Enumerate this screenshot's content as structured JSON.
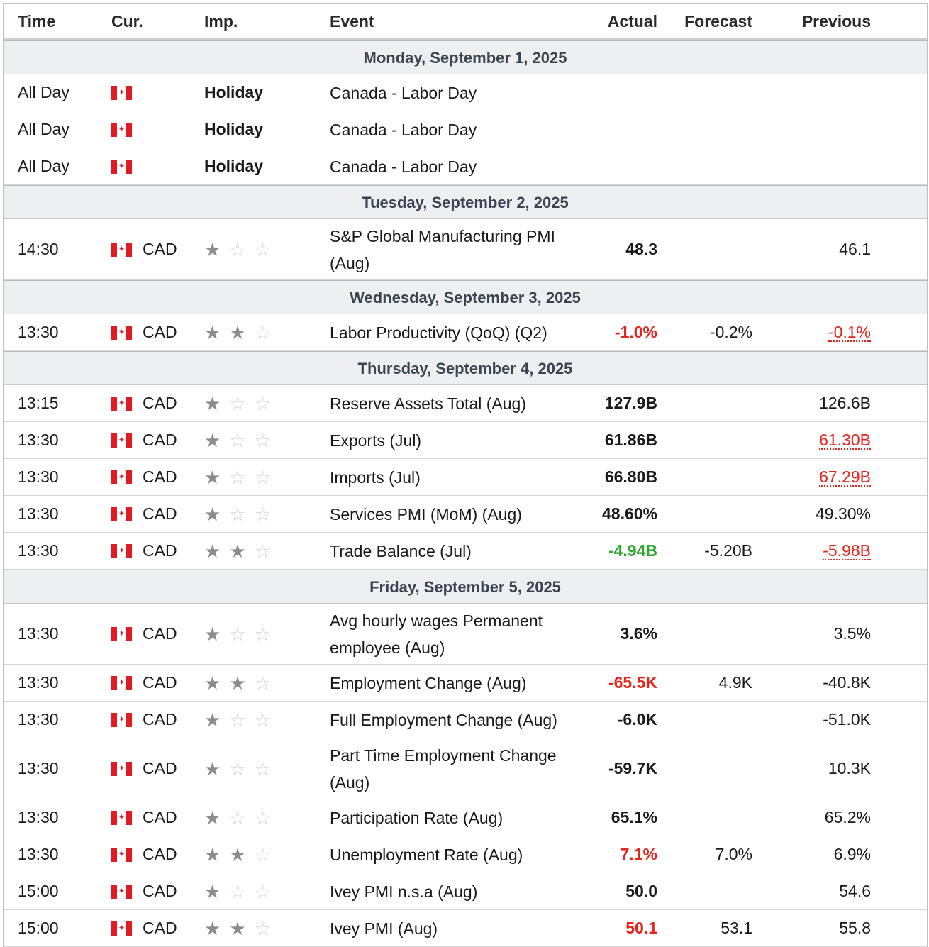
{
  "header": {
    "time": "Time",
    "cur": "Cur.",
    "imp": "Imp.",
    "event": "Event",
    "actual": "Actual",
    "forecast": "Forecast",
    "previous": "Previous"
  },
  "colors": {
    "accent_red": "#e8231b",
    "accent_green": "#2ea52e",
    "date_band": "#eeeff1"
  },
  "icons": {
    "flag": "canada-flag-icon",
    "star_filled": "star-filled-icon",
    "star_empty": "star-empty-icon"
  },
  "days": [
    {
      "date": "Monday, September 1, 2025",
      "rows": [
        {
          "time": "All Day",
          "cur": "",
          "imp_text": "Holiday",
          "stars": 0,
          "event": "Canada - Labor Day",
          "actual": "",
          "forecast": "",
          "previous": ""
        },
        {
          "time": "All Day",
          "cur": "",
          "imp_text": "Holiday",
          "stars": 0,
          "event": "Canada - Labor Day",
          "actual": "",
          "forecast": "",
          "previous": ""
        },
        {
          "time": "All Day",
          "cur": "",
          "imp_text": "Holiday",
          "stars": 0,
          "event": "Canada - Labor Day",
          "actual": "",
          "forecast": "",
          "previous": ""
        }
      ]
    },
    {
      "date": "Tuesday, September 2, 2025",
      "rows": [
        {
          "time": "14:30",
          "cur": "CAD",
          "stars": 1,
          "event": "S&P Global Manufacturing PMI (Aug)",
          "actual": "48.3",
          "actual_color": "",
          "forecast": "",
          "previous": "46.1",
          "previous_revised": false
        }
      ]
    },
    {
      "date": "Wednesday, September 3, 2025",
      "rows": [
        {
          "time": "13:30",
          "cur": "CAD",
          "stars": 2,
          "event": "Labor Productivity (QoQ) (Q2)",
          "actual": "-1.0%",
          "actual_color": "red",
          "forecast": "-0.2%",
          "previous": "-0.1%",
          "previous_revised": true
        }
      ]
    },
    {
      "date": "Thursday, September 4, 2025",
      "rows": [
        {
          "time": "13:15",
          "cur": "CAD",
          "stars": 1,
          "event": "Reserve Assets Total (Aug)",
          "actual": "127.9B",
          "actual_color": "",
          "forecast": "",
          "previous": "126.6B",
          "previous_revised": false
        },
        {
          "time": "13:30",
          "cur": "CAD",
          "stars": 1,
          "event": "Exports (Jul)",
          "actual": "61.86B",
          "actual_color": "",
          "forecast": "",
          "previous": "61.30B",
          "previous_revised": true
        },
        {
          "time": "13:30",
          "cur": "CAD",
          "stars": 1,
          "event": "Imports (Jul)",
          "actual": "66.80B",
          "actual_color": "",
          "forecast": "",
          "previous": "67.29B",
          "previous_revised": true
        },
        {
          "time": "13:30",
          "cur": "CAD",
          "stars": 1,
          "event": "Services PMI (MoM) (Aug)",
          "actual": "48.60%",
          "actual_color": "",
          "forecast": "",
          "previous": "49.30%",
          "previous_revised": false
        },
        {
          "time": "13:30",
          "cur": "CAD",
          "stars": 2,
          "event": "Trade Balance (Jul)",
          "actual": "-4.94B",
          "actual_color": "green",
          "forecast": "-5.20B",
          "previous": "-5.98B",
          "previous_revised": true
        }
      ]
    },
    {
      "date": "Friday, September 5, 2025",
      "rows": [
        {
          "time": "13:30",
          "cur": "CAD",
          "stars": 1,
          "event": "Avg hourly wages Permanent employee (Aug)",
          "actual": "3.6%",
          "actual_color": "",
          "forecast": "",
          "previous": "3.5%",
          "previous_revised": false
        },
        {
          "time": "13:30",
          "cur": "CAD",
          "stars": 2,
          "event": "Employment Change (Aug)",
          "actual": "-65.5K",
          "actual_color": "red",
          "forecast": "4.9K",
          "previous": "-40.8K",
          "previous_revised": false
        },
        {
          "time": "13:30",
          "cur": "CAD",
          "stars": 1,
          "event": "Full Employment Change (Aug)",
          "actual": "-6.0K",
          "actual_color": "",
          "forecast": "",
          "previous": "-51.0K",
          "previous_revised": false
        },
        {
          "time": "13:30",
          "cur": "CAD",
          "stars": 1,
          "event": "Part Time Employment Change (Aug)",
          "actual": "-59.7K",
          "actual_color": "",
          "forecast": "",
          "previous": "10.3K",
          "previous_revised": false
        },
        {
          "time": "13:30",
          "cur": "CAD",
          "stars": 1,
          "event": "Participation Rate (Aug)",
          "actual": "65.1%",
          "actual_color": "",
          "forecast": "",
          "previous": "65.2%",
          "previous_revised": false
        },
        {
          "time": "13:30",
          "cur": "CAD",
          "stars": 2,
          "event": "Unemployment Rate (Aug)",
          "actual": "7.1%",
          "actual_color": "red",
          "forecast": "7.0%",
          "previous": "6.9%",
          "previous_revised": false
        },
        {
          "time": "15:00",
          "cur": "CAD",
          "stars": 1,
          "event": "Ivey PMI n.s.a (Aug)",
          "actual": "50.0",
          "actual_color": "",
          "forecast": "",
          "previous": "54.6",
          "previous_revised": false
        },
        {
          "time": "15:00",
          "cur": "CAD",
          "stars": 2,
          "event": "Ivey PMI (Aug)",
          "actual": "50.1",
          "actual_color": "red",
          "forecast": "53.1",
          "previous": "55.8",
          "previous_revised": false
        }
      ]
    }
  ]
}
